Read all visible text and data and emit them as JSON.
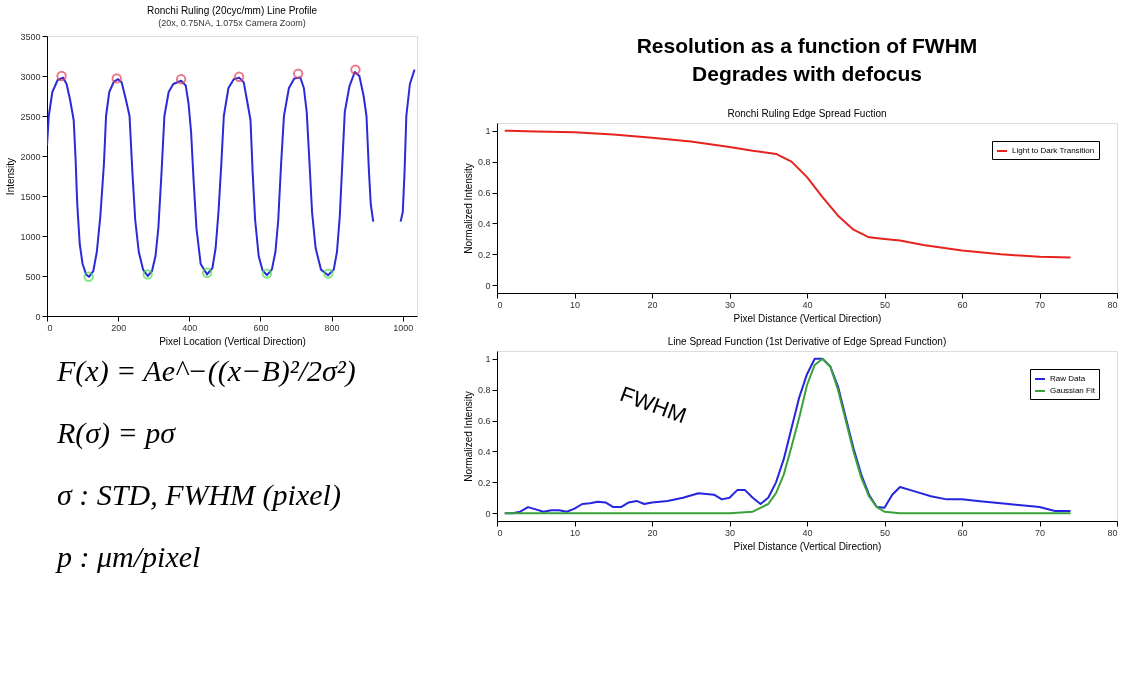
{
  "chart_data": [
    {
      "type": "line",
      "title": "Ronchi Ruling (20cyc/mm) Line Profile",
      "subtitle": "(20x, 0.75NA, 1.075x Camera Zoom)",
      "xlabel": "Pixel Location (Vertical Direction)",
      "ylabel": "Intensity",
      "xlim": [
        0,
        1040
      ],
      "xticks": [
        0,
        200,
        400,
        600,
        800,
        1000
      ],
      "ylim": [
        0,
        3500
      ],
      "yticks": [
        0,
        500,
        1000,
        1500,
        2000,
        2500,
        3000,
        3500
      ],
      "legend": false,
      "grid": false,
      "series": [
        {
          "color": "#2a2ad8",
          "line_style": "solid",
          "x": [
            0,
            5,
            15,
            30,
            45,
            55,
            65,
            75,
            80,
            85,
            92,
            100,
            110,
            118,
            130,
            140,
            150,
            160,
            166,
            175,
            188,
            200,
            210,
            222,
            232,
            240,
            248,
            258,
            270,
            283,
            295,
            305,
            313,
            322,
            330,
            342,
            355,
            377,
            390,
            398,
            405,
            412,
            420,
            432,
            450,
            465,
            474,
            482,
            490,
            497,
            510,
            525,
            540,
            553,
            562,
            572,
            578,
            585,
            595,
            606,
            618,
            632,
            642,
            650,
            658,
            666,
            680,
            695,
            712,
            722,
            730,
            738,
            745,
            755,
            770,
            790,
            806,
            815,
            823,
            830,
            837,
            850,
            865,
            878,
            890,
            898,
            905,
            910,
            917,
            955,
            994,
            1000,
            1005,
            1010,
            1020,
            1033
          ],
          "values": [
            2130,
            2500,
            2800,
            2950,
            2980,
            2900,
            2700,
            2450,
            2000,
            1400,
            900,
            650,
            520,
            490,
            560,
            800,
            1250,
            1900,
            2500,
            2800,
            2930,
            2960,
            2920,
            2700,
            2500,
            1800,
            1200,
            800,
            580,
            500,
            560,
            750,
            1100,
            1800,
            2500,
            2800,
            2900,
            2940,
            2880,
            2650,
            2300,
            1700,
            1100,
            650,
            520,
            600,
            850,
            1300,
            1900,
            2500,
            2850,
            2960,
            2980,
            2920,
            2700,
            2450,
            1800,
            1200,
            750,
            570,
            510,
            580,
            800,
            1200,
            1900,
            2500,
            2850,
            2970,
            2980,
            2850,
            2550,
            1900,
            1300,
            850,
            580,
            510,
            580,
            800,
            1250,
            1900,
            2550,
            2870,
            3050,
            3000,
            2750,
            2500,
            1800,
            1400,
            1180,
            null,
            1180,
            1300,
            1800,
            2500,
            2900,
            3080
          ]
        },
        {
          "type": "scatter",
          "marker": "circle",
          "color": "#e0405a",
          "x": [
            41,
            196,
            377,
            540,
            706,
            867
          ],
          "values": [
            3000,
            2970,
            2960,
            2990,
            3030,
            3080
          ]
        },
        {
          "type": "scatter",
          "marker": "circle",
          "color": "#4ddd4d",
          "x": [
            117,
            283,
            450,
            618,
            791
          ],
          "values": [
            490,
            520,
            540,
            530,
            530
          ]
        }
      ]
    },
    {
      "type": "other",
      "annotations": [
        "Resolution as a function of FWHM",
        "Degrades with defocus"
      ]
    },
    {
      "type": "line",
      "title": "Ronchi Ruling Edge Spread Fuction",
      "xlabel": "Pixel Distance (Vertical Direction)",
      "ylabel": "Normalized Intensity",
      "xlim": [
        0,
        80
      ],
      "xticks": [
        0,
        10,
        20,
        30,
        40,
        50,
        60,
        70,
        80
      ],
      "ylim": [
        -0.05,
        1.05
      ],
      "yticks": [
        0,
        0.2,
        0.4,
        0.6,
        0.8,
        1
      ],
      "legend": "top right",
      "grid": false,
      "x": [
        1,
        5,
        10,
        15,
        20,
        25,
        30,
        33,
        36,
        38,
        40,
        42,
        44,
        46,
        48,
        50,
        52,
        55,
        60,
        65,
        70,
        74
      ],
      "series": [
        {
          "name": "Light to Dark Transition",
          "color": "#e8231f",
          "values": [
            1.0,
            0.995,
            0.99,
            0.975,
            0.955,
            0.93,
            0.895,
            0.87,
            0.85,
            0.8,
            0.7,
            0.57,
            0.45,
            0.36,
            0.31,
            0.3,
            0.29,
            0.26,
            0.225,
            0.2,
            0.185,
            0.18
          ]
        }
      ]
    },
    {
      "type": "other",
      "annotations": [
        "F(x) = Ae^−((x−B)²/2σ²)",
        "R(σ) = pσ",
        "σ : STD, FWHM (pixel)",
        "p : μm/pixel"
      ]
    },
    {
      "type": "line",
      "title": "Line Spread Function (1st Derivative of Edge Spread Function)",
      "xlabel": "Pixel Distance (Vertical Direction)",
      "ylabel": "Normalized Intensity",
      "xlim": [
        0,
        80
      ],
      "xticks": [
        0,
        10,
        20,
        30,
        40,
        50,
        60,
        70,
        80
      ],
      "ylim": [
        -0.05,
        1.05
      ],
      "yticks": [
        0,
        0.2,
        0.4,
        0.6,
        0.8,
        1
      ],
      "legend": "top right",
      "grid": false,
      "annotations": [
        "FWHM"
      ],
      "series": [
        {
          "name": "Raw Data",
          "color": "#2525e0",
          "x": [
            1,
            2,
            3,
            4,
            5,
            6,
            7,
            8,
            9,
            10,
            11,
            12,
            13,
            14,
            15,
            16,
            17,
            18,
            19,
            20,
            22,
            24,
            26,
            28,
            29,
            30,
            31,
            32,
            33,
            34,
            35,
            36,
            37,
            38,
            39,
            40,
            41,
            42,
            43,
            44,
            45,
            46,
            47,
            48,
            49,
            50,
            51,
            52,
            54,
            56,
            58,
            60,
            62,
            64,
            66,
            68,
            70,
            72,
            74
          ],
          "values": [
            0,
            0,
            0.01,
            0.04,
            0.025,
            0.01,
            0.02,
            0.02,
            0.01,
            0.03,
            0.06,
            0.065,
            0.075,
            0.07,
            0.04,
            0.04,
            0.07,
            0.08,
            0.06,
            0.07,
            0.08,
            0.1,
            0.13,
            0.12,
            0.09,
            0.1,
            0.15,
            0.15,
            0.1,
            0.06,
            0.1,
            0.2,
            0.35,
            0.55,
            0.75,
            0.9,
            1.0,
            1.0,
            0.95,
            0.82,
            0.62,
            0.42,
            0.25,
            0.12,
            0.04,
            0.035,
            0.12,
            0.17,
            0.14,
            0.11,
            0.09,
            0.09,
            0.08,
            0.07,
            0.06,
            0.05,
            0.04,
            0.015,
            0.015
          ]
        },
        {
          "name": "Gaussian Fit",
          "color": "#3aa23a",
          "x": [
            1,
            30,
            33,
            35,
            36,
            37,
            38,
            39,
            40,
            41,
            42,
            43,
            44,
            45,
            46,
            47,
            48,
            49,
            50,
            52,
            74
          ],
          "values": [
            0,
            0,
            0.01,
            0.06,
            0.13,
            0.25,
            0.43,
            0.62,
            0.83,
            0.96,
            1.0,
            0.95,
            0.8,
            0.6,
            0.4,
            0.23,
            0.11,
            0.04,
            0.01,
            0,
            0
          ]
        }
      ]
    }
  ]
}
